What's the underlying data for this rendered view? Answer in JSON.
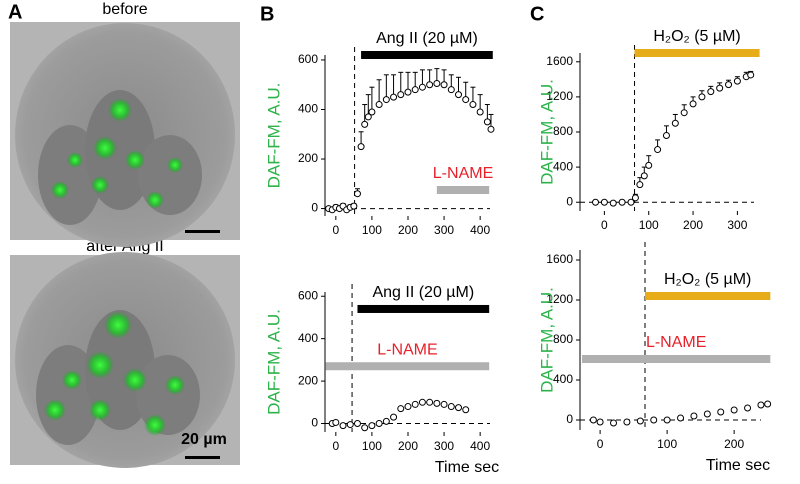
{
  "panels": {
    "labels": [
      "A",
      "B",
      "C"
    ],
    "image_captions": [
      "before",
      "after Ang II"
    ],
    "scale_bar": "20 µm"
  },
  "chart_data": [
    {
      "type": "line",
      "ylabel": "DAF-FM, A.U.",
      "color": "#000000",
      "x": [
        -20,
        -10,
        0,
        10,
        20,
        30,
        40,
        50,
        60,
        70,
        80,
        90,
        100,
        120,
        140,
        160,
        180,
        200,
        220,
        240,
        260,
        280,
        300,
        320,
        340,
        360,
        380,
        400,
        420,
        430
      ],
      "values": [
        0,
        -5,
        5,
        0,
        10,
        -5,
        5,
        10,
        60,
        250,
        340,
        370,
        390,
        420,
        440,
        450,
        460,
        470,
        480,
        490,
        500,
        505,
        500,
        480,
        460,
        440,
        420,
        390,
        350,
        320
      ],
      "errors": [
        0,
        10,
        10,
        10,
        10,
        10,
        10,
        10,
        20,
        60,
        80,
        90,
        100,
        100,
        100,
        90,
        90,
        80,
        70,
        70,
        60,
        60,
        60,
        60,
        70,
        70,
        70,
        70,
        70,
        60
      ],
      "xlim": [
        -30,
        455
      ],
      "ylim": [
        -30,
        620
      ],
      "xticks": [
        0,
        100,
        200,
        300,
        400
      ],
      "yticks": [
        0,
        200,
        400,
        600
      ],
      "onset": 52,
      "reference_y": 0,
      "annotations": [
        {
          "label": "Ang II (20 µM)",
          "start": 70,
          "end": 435,
          "level": 620,
          "color": "#000000",
          "label_color": "#000000"
        },
        {
          "label": "L-NAME",
          "start": 280,
          "end": 425,
          "level": 75,
          "color": "#b0b0b0",
          "label_color": "#e8202a"
        }
      ]
    },
    {
      "type": "line",
      "ylabel": "DAF-FM, A.U.",
      "xlabel": "Time sec",
      "color": "#000000",
      "x": [
        -10,
        0,
        20,
        40,
        60,
        80,
        100,
        120,
        140,
        160,
        180,
        200,
        220,
        240,
        260,
        280,
        300,
        320,
        340,
        360
      ],
      "values": [
        0,
        5,
        -10,
        -5,
        0,
        -20,
        -10,
        0,
        10,
        30,
        70,
        80,
        90,
        100,
        100,
        95,
        90,
        80,
        75,
        65
      ],
      "xlim": [
        -30,
        455
      ],
      "ylim": [
        -40,
        620
      ],
      "xticks": [
        0,
        100,
        200,
        300,
        400
      ],
      "yticks": [
        0,
        200,
        400,
        600
      ],
      "onset": 45,
      "reference_y": 0,
      "annotations": [
        {
          "label": "Ang II (20 µM)",
          "start": 60,
          "end": 425,
          "level": 540,
          "color": "#000000",
          "label_color": "#000000"
        },
        {
          "label": "L-NAME",
          "start": -28,
          "end": 425,
          "level": 270,
          "color": "#b0b0b0",
          "label_color": "#e8202a"
        }
      ]
    },
    {
      "type": "line",
      "ylabel": "DAF-FM, A.U.",
      "color": "#000000",
      "x": [
        -20,
        0,
        20,
        40,
        60,
        70,
        80,
        90,
        100,
        120,
        140,
        160,
        180,
        200,
        220,
        240,
        260,
        280,
        300,
        320,
        330
      ],
      "values": [
        0,
        0,
        -10,
        0,
        0,
        50,
        200,
        300,
        420,
        600,
        760,
        900,
        1020,
        1120,
        1200,
        1260,
        1300,
        1340,
        1380,
        1430,
        1450
      ],
      "errors": [
        0,
        10,
        10,
        10,
        20,
        40,
        80,
        100,
        110,
        110,
        110,
        100,
        90,
        80,
        70,
        60,
        60,
        50,
        50,
        50,
        40
      ],
      "xlim": [
        -55,
        360
      ],
      "ylim": [
        -100,
        1700
      ],
      "xticks": [
        0,
        100,
        200,
        300
      ],
      "yticks": [
        0,
        400,
        800,
        1200,
        1600
      ],
      "onset": 68,
      "reference_y": 0,
      "annotations": [
        {
          "label": "H₂O₂ (5 µM)",
          "start": 68,
          "end": 350,
          "level": 1700,
          "color": "#e6ac1a",
          "label_color": "#000000"
        }
      ]
    },
    {
      "type": "line",
      "ylabel": "DAF-FM, A.U.",
      "xlabel": "Time sec",
      "color": "#000000",
      "x": [
        -10,
        0,
        20,
        40,
        60,
        80,
        100,
        120,
        140,
        160,
        180,
        200,
        220,
        240,
        250
      ],
      "values": [
        0,
        -20,
        -30,
        -20,
        -10,
        0,
        0,
        20,
        40,
        60,
        80,
        100,
        120,
        150,
        160
      ],
      "xlim": [
        -30,
        255
      ],
      "ylim": [
        -100,
        1700
      ],
      "xticks": [
        0,
        100,
        200
      ],
      "yticks": [
        0,
        400,
        800,
        1200,
        1600
      ],
      "onset": 67,
      "reference_y": 0,
      "annotations": [
        {
          "label": "H₂O₂ (5 µM)",
          "start": 67,
          "end": 254,
          "level": 1240,
          "color": "#e6ac1a",
          "label_color": "#000000"
        },
        {
          "label": "L-NAME",
          "start": -27,
          "end": 254,
          "level": 610,
          "color": "#b0b0b0",
          "label_color": "#e8202a"
        }
      ]
    }
  ]
}
